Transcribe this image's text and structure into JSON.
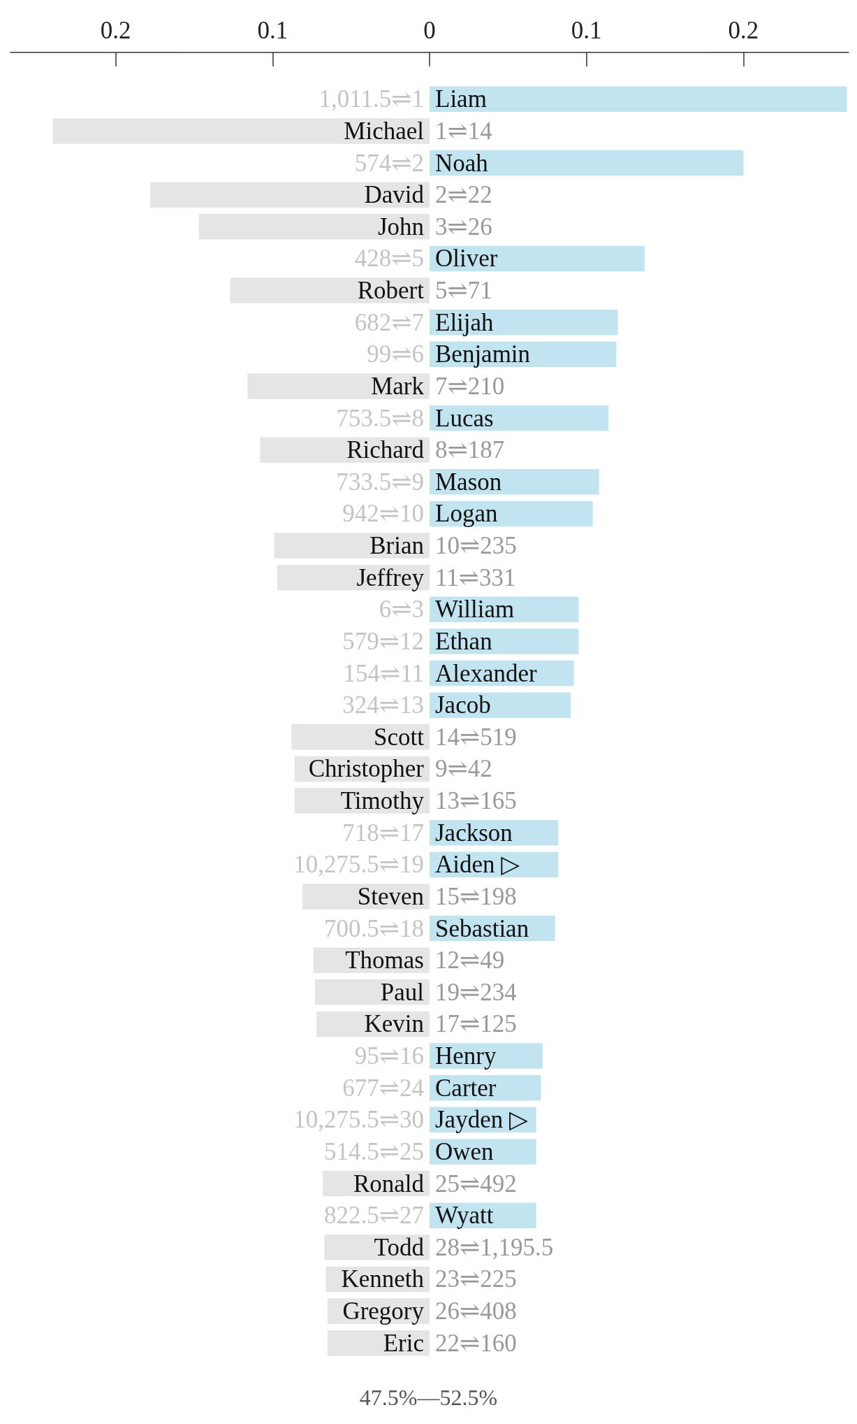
{
  "chart_data": {
    "type": "bar",
    "orientation": "horizontal",
    "categories": [
      "Liam",
      "Michael",
      "Noah",
      "David",
      "John",
      "Oliver",
      "Robert",
      "Elijah",
      "Benjamin",
      "Mark",
      "Lucas",
      "Richard",
      "Mason",
      "Logan",
      "Brian",
      "Jeffrey",
      "William",
      "Ethan",
      "Alexander",
      "Jacob",
      "Scott",
      "Christopher",
      "Timothy",
      "Jackson",
      "Aiden ▷",
      "Steven",
      "Sebastian",
      "Thomas",
      "Paul",
      "Kevin",
      "Henry",
      "Carter",
      "Jayden ▷",
      "Owen",
      "Ronald",
      "Wyatt",
      "Todd",
      "Kenneth",
      "Gregory",
      "Eric"
    ],
    "values": [
      0.266,
      -0.24,
      0.2,
      -0.178,
      -0.147,
      0.137,
      -0.127,
      0.12,
      0.119,
      -0.116,
      0.114,
      -0.108,
      0.108,
      0.104,
      -0.099,
      -0.097,
      0.095,
      0.095,
      0.092,
      0.09,
      -0.088,
      -0.086,
      -0.086,
      0.082,
      0.082,
      -0.081,
      0.08,
      -0.074,
      -0.073,
      -0.072,
      0.072,
      0.071,
      0.068,
      0.068,
      -0.068,
      0.068,
      -0.067,
      -0.066,
      -0.065,
      -0.065
    ],
    "colors": [
      "#c2e4f0",
      "#e5e5e5",
      "#c2e4f0",
      "#e5e5e5",
      "#e5e5e5",
      "#c2e4f0",
      "#e5e5e5",
      "#c2e4f0",
      "#c2e4f0",
      "#e5e5e5",
      "#c2e4f0",
      "#e5e5e5",
      "#c2e4f0",
      "#c2e4f0",
      "#e5e5e5",
      "#e5e5e5",
      "#c2e4f0",
      "#c2e4f0",
      "#c2e4f0",
      "#c2e4f0",
      "#e5e5e5",
      "#e5e5e5",
      "#e5e5e5",
      "#c2e4f0",
      "#c2e4f0",
      "#e5e5e5",
      "#c2e4f0",
      "#e5e5e5",
      "#e5e5e5",
      "#e5e5e5",
      "#c2e4f0",
      "#c2e4f0",
      "#c2e4f0",
      "#c2e4f0",
      "#e5e5e5",
      "#c2e4f0",
      "#e5e5e5",
      "#e5e5e5",
      "#e5e5e5",
      "#e5e5e5"
    ],
    "xlim": [
      -0.267,
      0.267
    ],
    "xticks": [
      {
        "value": -0.2,
        "label": "0.2"
      },
      {
        "value": -0.1,
        "label": "0.1"
      },
      0,
      0.1,
      0.2
    ],
    "grid": false,
    "annotations": [
      "1,011.5⇌1",
      "1⇌14",
      "574⇌2",
      "2⇌22",
      "3⇌26",
      "428⇌5",
      "5⇌71",
      "682⇌7",
      "99⇌6",
      "7⇌210",
      "753.5⇌8",
      "8⇌187",
      "733.5⇌9",
      "942⇌10",
      "10⇌235",
      "11⇌331",
      "6⇌3",
      "579⇌12",
      "154⇌11",
      "324⇌13",
      "14⇌519",
      "9⇌42",
      "13⇌165",
      "718⇌17",
      "10,275.5⇌19",
      "15⇌198",
      "700.5⇌18",
      "12⇌49",
      "19⇌234",
      "17⇌125",
      "95⇌16",
      "677⇌24",
      "10,275.5⇌30",
      "514.5⇌25",
      "25⇌492",
      "822.5⇌27",
      "28⇌1,195.5",
      "23⇌225",
      "26⇌408",
      "22⇌160",
      "47.5%—52.5%"
    ]
  }
}
